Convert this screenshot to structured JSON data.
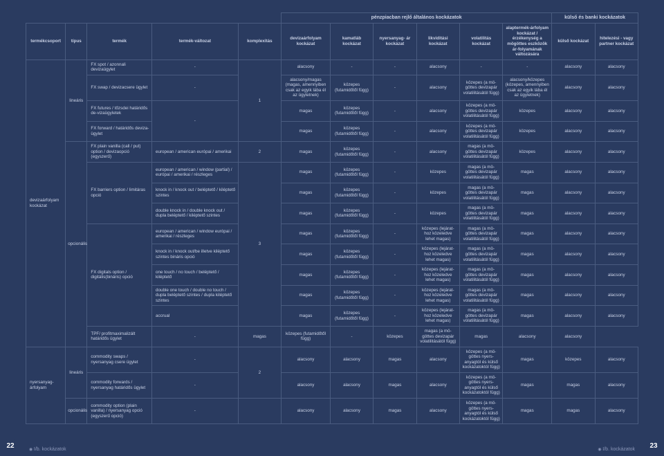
{
  "colors": {
    "background": "#2a3b60",
    "border": "#4a5c80",
    "text_light": "#c8d0e4",
    "text_dim": "#8a96b8"
  },
  "superhead": {
    "general": "pénzpiacban rejlő általános kockázatok",
    "external": "külső és banki kockázatok"
  },
  "head": {
    "prodgroup": "termékcsoport",
    "type": "típus",
    "prod": "termék",
    "variant": "termék-változat",
    "complex": "komplexitás",
    "r1": "devizaárfolyam kockázat",
    "r2": "kamatláb kockázat",
    "r3": "nyersanyag-\nár kockázat",
    "r4": "likviditási kockázat",
    "r5": "volatilitás kockázat",
    "r6": "alaptermék-árfolyam kockázat / érzékenység a mögöttes eszközök ár-folyamának változására",
    "r7": "külső kockázat",
    "r8": "hitelezési - vagy partner kockázat"
  },
  "groups": {
    "g1": "devizaárfolyam kockázat",
    "g2": "nyersanyag-árfolyam"
  },
  "types": {
    "linear": "lineáris",
    "optional": "opcionális"
  },
  "products": {
    "p1": "FX spot / azonnali devizaügylet",
    "p2": "FX swap / devizacsere ügylet",
    "p3": "FX futures / tőzsdei határidős de-vizaügyletek",
    "p4": "FX forward / határidős deviza-ügylet",
    "p5": "FX plain vanilla (call / put) option / devizaopció (egyszerű)",
    "p6": "FX barriers option / limitáras opció",
    "p7": "FX digitals option / digitális(bináris) opció",
    "p8": "TPF/ profitmaximalizált határidős ügylet",
    "p9": "commodity swaps / nyersanyag csere ügylet",
    "p10": "commodity forwards / nyersanyag határidős ügylet",
    "p11": "commodity option (plain vanilla) / nyersanyag opció (egyszerű opció)"
  },
  "variants": {
    "v5": "european / american európai / amerikai",
    "v6a": "european / american / window (partial) / európai / amerikai / részleges",
    "v6b": "knock in / knock out / beléptető / kiléptető szintes",
    "v6c": "double knock in / double knock out / dupla beléptető / kiléptető szintes",
    "v7a": "european / american / window európai / amerikai / részleges",
    "v7b": "knock in / knock out/be illetve kiléptető szintes bináris opció",
    "v7c": "one touch / no touch / beléptető / kiléptető",
    "v7d": "double one touch / double no touch / dupla beléptető szintes / dupla kiléptető szintes",
    "v7e": "accrual",
    "dash": "-"
  },
  "complex": {
    "c1": "1",
    "c2": "2",
    "c3": "3"
  },
  "vals": {
    "low": "alacsony",
    "high": "magas",
    "mid": "közepes",
    "dash": "-",
    "low_high": "alacsony/magas (magas, amennyiben csak az egyik lába él az ügyletnek)",
    "mid_dur": "közepes (futamidőtől függ)",
    "mid_vol": "közepes (a mö-göttes devizapár volatilitásától függ)",
    "low_mid": "alacsony/közepes (közepes, amennyiben csak az egyik lába él az ügyletnek)",
    "high_vol": "magas (a mö-göttes devizapár volatilitásától függ)",
    "mid_exp": "közepes (lejárat-hoz közeledve lehet magas)",
    "mid_comm": "közepes (a mö-göttes nyers-anyagtól és külső kockázatoktól függ)"
  },
  "footer": {
    "left": "I/b. kockázatok",
    "right": "I/b. kockázatok",
    "page_left": "22",
    "page_right": "23"
  }
}
